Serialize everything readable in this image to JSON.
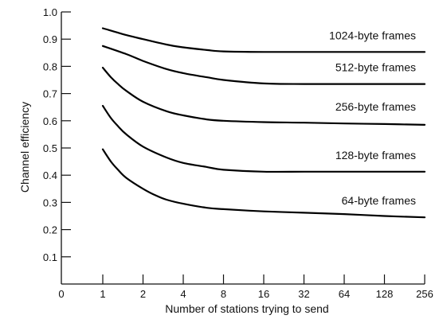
{
  "chart_data": {
    "type": "line",
    "title": "",
    "xlabel": "Number of stations trying to send",
    "ylabel": "Channel efficiency",
    "x_tick_labels": [
      "0",
      "1",
      "2",
      "4",
      "8",
      "16",
      "32",
      "64",
      "128",
      "256"
    ],
    "x_tick_values": [
      0,
      1,
      2,
      4,
      8,
      16,
      32,
      64,
      128,
      256
    ],
    "x_scale": "log2 (stations 1–256), with 0 at origin",
    "y_tick_labels": [
      "0.1",
      "0.2",
      "0.3",
      "0.4",
      "0.5",
      "0.6",
      "0.7",
      "0.8",
      "0.9",
      "1.0"
    ],
    "ylim": [
      0,
      1.0
    ],
    "grid": false,
    "legend": "inline labels at right end of each curve",
    "series": [
      {
        "name": "1024-byte frames",
        "x": [
          1,
          1.5,
          2,
          3,
          4,
          6,
          8,
          16,
          32,
          64,
          128,
          256
        ],
        "y": [
          0.94,
          0.915,
          0.9,
          0.88,
          0.87,
          0.86,
          0.855,
          0.853,
          0.853,
          0.853,
          0.853,
          0.853
        ]
      },
      {
        "name": "512-byte frames",
        "x": [
          1,
          1.5,
          2,
          3,
          4,
          6,
          8,
          16,
          32,
          64,
          128,
          256
        ],
        "y": [
          0.875,
          0.845,
          0.82,
          0.79,
          0.775,
          0.76,
          0.75,
          0.737,
          0.735,
          0.735,
          0.735,
          0.735
        ]
      },
      {
        "name": "256-byte frames",
        "x": [
          1,
          1.15,
          1.3,
          1.5,
          2,
          3,
          4,
          6,
          8,
          16,
          32,
          64,
          128,
          256
        ],
        "y": [
          0.795,
          0.76,
          0.735,
          0.71,
          0.67,
          0.635,
          0.62,
          0.605,
          0.6,
          0.595,
          0.593,
          0.59,
          0.588,
          0.585
        ]
      },
      {
        "name": "128-byte frames",
        "x": [
          1,
          1.15,
          1.3,
          1.5,
          2,
          3,
          4,
          6,
          8,
          16,
          32,
          64,
          128,
          256
        ],
        "y": [
          0.655,
          0.61,
          0.58,
          0.55,
          0.505,
          0.465,
          0.445,
          0.43,
          0.42,
          0.413,
          0.413,
          0.413,
          0.413,
          0.413
        ]
      },
      {
        "name": "64-byte frames",
        "x": [
          1,
          1.15,
          1.3,
          1.5,
          2,
          2.5,
          3,
          4,
          6,
          8,
          16,
          32,
          64,
          128,
          256
        ],
        "y": [
          0.495,
          0.45,
          0.42,
          0.39,
          0.35,
          0.325,
          0.31,
          0.295,
          0.28,
          0.275,
          0.267,
          0.262,
          0.257,
          0.25,
          0.245
        ]
      }
    ]
  }
}
